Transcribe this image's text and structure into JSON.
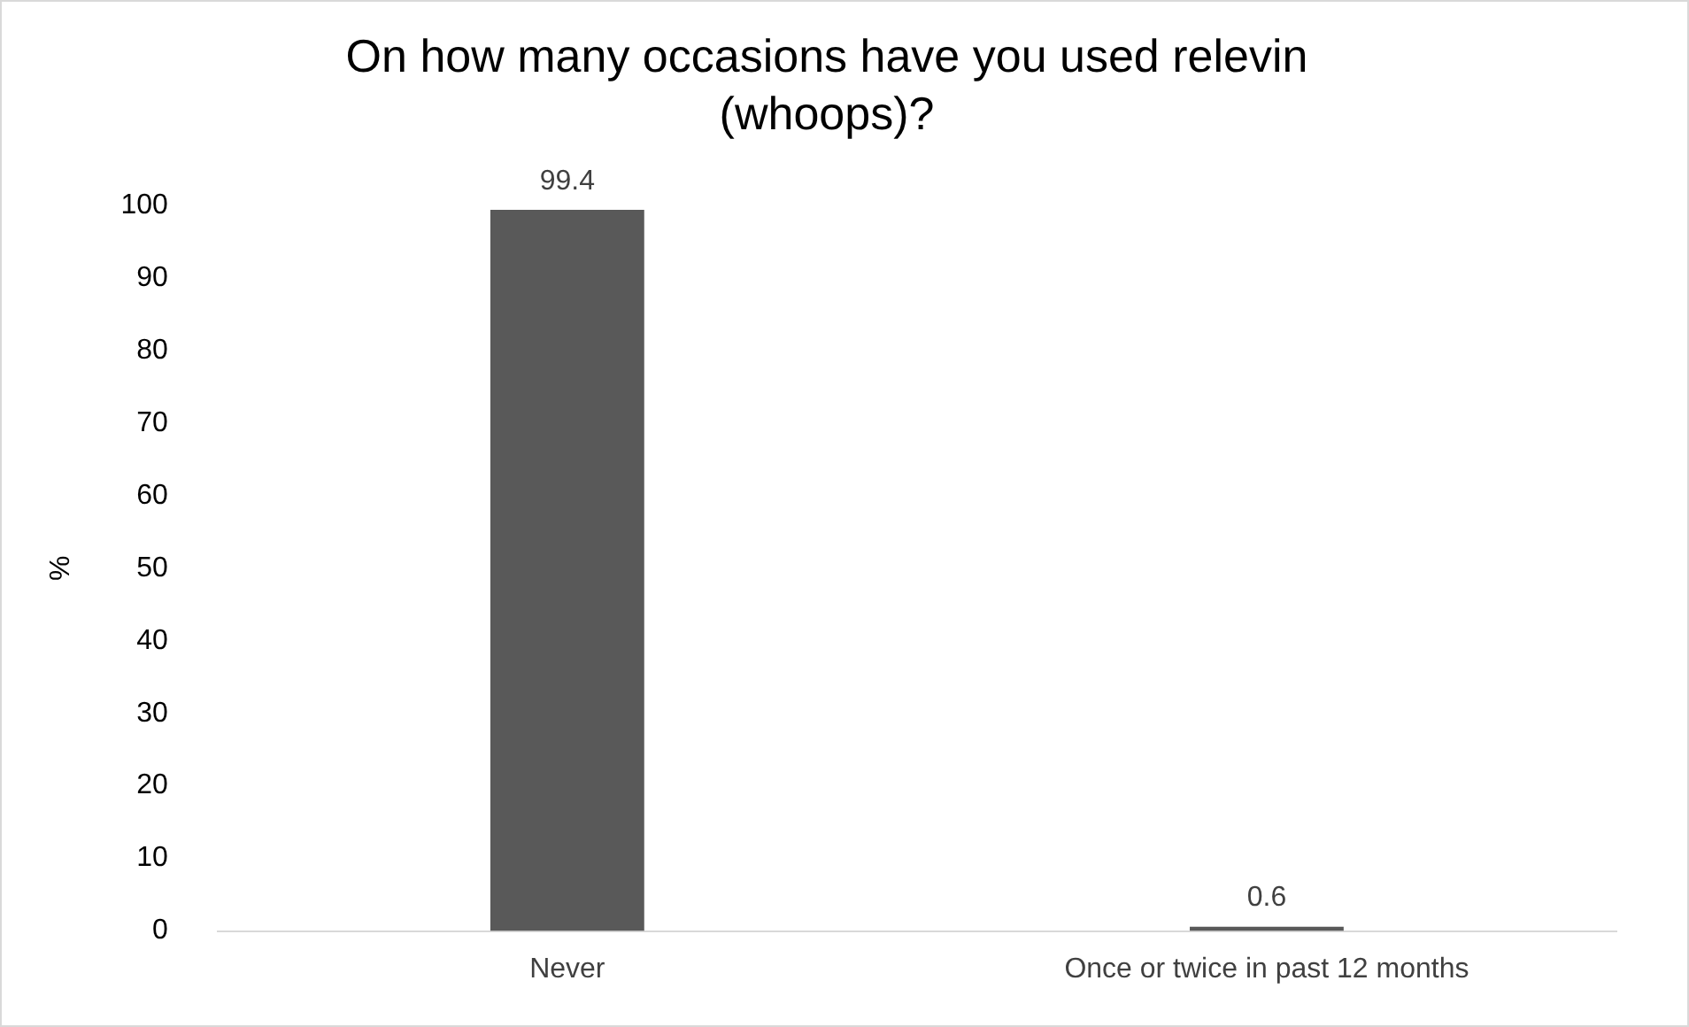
{
  "chart_data": {
    "type": "bar",
    "title": "On how many occasions have you used relevin (whoops)?",
    "ylabel": "%",
    "categories": [
      "Never",
      "Once or twice in past 12 months"
    ],
    "values": [
      99.4,
      0.6
    ],
    "color": "#595959",
    "ylim": [
      0,
      100
    ],
    "yticks": [
      0,
      10,
      20,
      30,
      40,
      50,
      60,
      70,
      80,
      90,
      100
    ],
    "grid": false,
    "legend": false,
    "data_labels": true
  }
}
